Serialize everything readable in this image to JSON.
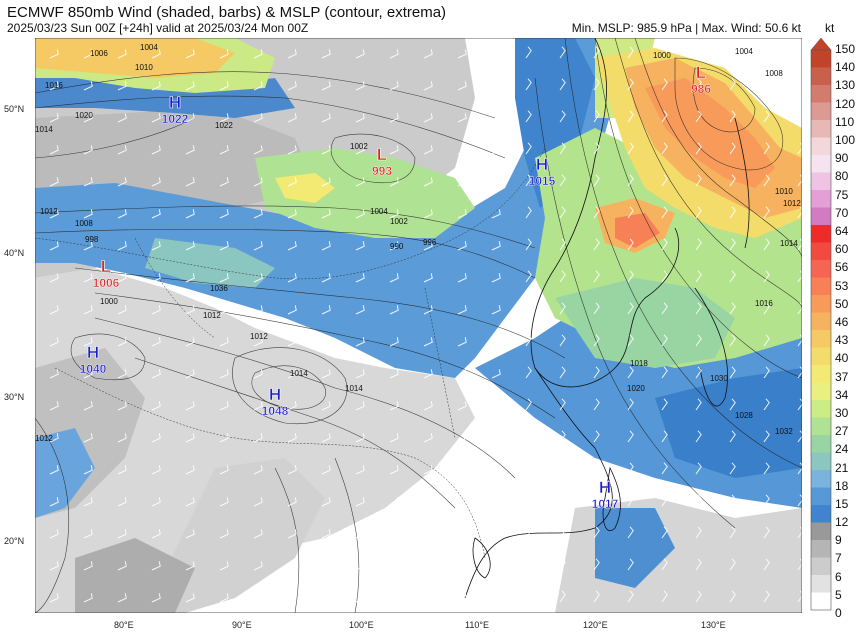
{
  "header": {
    "title": "ECMWF 850mb Wind (shaded, barbs) & MSLP (contour, extrema)",
    "subtitle": "2025/03/23 Sun 00Z [+24h] valid at 2025/03/24 Mon 00Z",
    "stats": "Min. MSLP: 985.9 hPa | Max. Wind: 50.6 kt",
    "units": "kt"
  },
  "map": {
    "lat_labels": [
      "50°N",
      "40°N",
      "30°N",
      "20°N"
    ],
    "lon_labels": [
      "80°E",
      "90°E",
      "100°E",
      "110°E",
      "120°E",
      "130°E"
    ],
    "pressure_centers": [
      {
        "type": "H",
        "value": "1022",
        "color": "#1a1acc"
      },
      {
        "type": "L",
        "value": "993",
        "color": "#dd2222"
      },
      {
        "type": "H",
        "value": "1015",
        "color": "#1a1acc"
      },
      {
        "type": "L",
        "value": "986",
        "color": "#dd2222"
      },
      {
        "type": "L",
        "value": "1006",
        "color": "#dd2222"
      },
      {
        "type": "H",
        "value": "1040",
        "color": "#1a1acc"
      },
      {
        "type": "H",
        "value": "1048",
        "color": "#1a1acc"
      },
      {
        "type": "H",
        "value": "1017",
        "color": "#1a1acc"
      }
    ],
    "isobar_labels": [
      "1006",
      "1004",
      "1010",
      "1016",
      "1020",
      "1022",
      "1014",
      "1012",
      "1008",
      "998",
      "1000",
      "1002",
      "1004",
      "1002",
      "990",
      "996",
      "1000",
      "1004",
      "1008",
      "1010",
      "1012",
      "1014",
      "1016",
      "1018",
      "1020",
      "1030",
      "1028",
      "1032",
      "1036",
      "1012",
      "1012",
      "1014",
      "1014",
      "1012"
    ]
  },
  "colorbar": {
    "labels": [
      "150",
      "140",
      "130",
      "120",
      "110",
      "100",
      "90",
      "80",
      "75",
      "70",
      "64",
      "60",
      "56",
      "53",
      "50",
      "46",
      "43",
      "40",
      "37",
      "34",
      "30",
      "27",
      "24",
      "21",
      "18",
      "15",
      "12",
      "9",
      "7",
      "6",
      "5",
      "0"
    ],
    "colors": [
      "#c1442a",
      "#c9604c",
      "#d37c6e",
      "#dd9a92",
      "#e8b8b6",
      "#f3d7d9",
      "#f6e3f0",
      "#efc3e4",
      "#e39fd6",
      "#d27bc3",
      "#ee2b2b",
      "#f34a3f",
      "#f66552",
      "#f78057",
      "#f79a5a",
      "#f7b25f",
      "#f5c964",
      "#f4dc6a",
      "#f2ea72",
      "#e9f07f",
      "#ccec86",
      "#b0e293",
      "#99d4a3",
      "#8bc6c0",
      "#7bb3de",
      "#5799d6",
      "#3f84cc",
      "#999999",
      "#b5b5b5",
      "#cccccc",
      "#e2e2e2",
      "#ffffff"
    ]
  }
}
